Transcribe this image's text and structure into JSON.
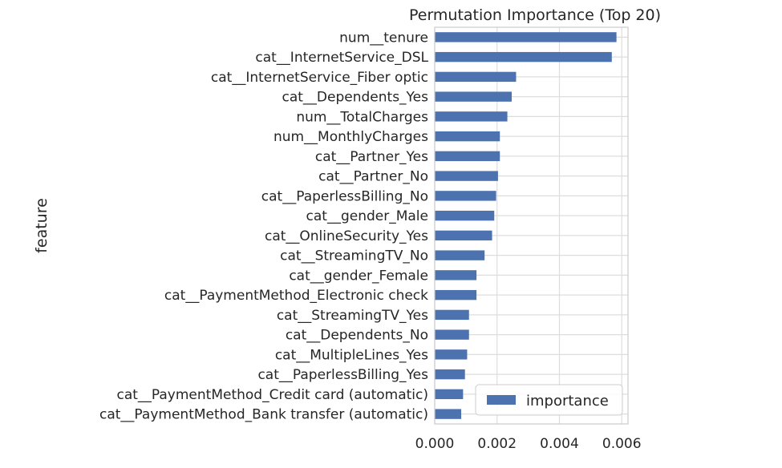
{
  "chart_data": {
    "type": "bar",
    "orientation": "horizontal",
    "title": "Permutation Importance (Top 20)",
    "xlabel": "",
    "ylabel": "feature",
    "xlim": [
      0,
      0.0062
    ],
    "xticks": [
      "0.000",
      "0.002",
      "0.004",
      "0.006"
    ],
    "xtick_values": [
      0,
      0.002,
      0.004,
      0.006
    ],
    "grid": true,
    "legend_position": "lower-right",
    "bar_color": "#4c72b0",
    "categories": [
      "num__tenure",
      "cat__InternetService_DSL",
      "cat__InternetService_Fiber optic",
      "cat__Dependents_Yes",
      "num__TotalCharges",
      "num__MonthlyCharges",
      "cat__Partner_Yes",
      "cat__Partner_No",
      "cat__PaperlessBilling_No",
      "cat__gender_Male",
      "cat__OnlineSecurity_Yes",
      "cat__StreamingTV_No",
      "cat__gender_Female",
      "cat__PaymentMethod_Electronic check",
      "cat__StreamingTV_Yes",
      "cat__Dependents_No",
      "cat__MultipleLines_Yes",
      "cat__PaperlessBilling_Yes",
      "cat__PaymentMethod_Credit card (automatic)",
      "cat__PaymentMethod_Bank transfer (automatic)"
    ],
    "series": [
      {
        "name": "importance",
        "values": [
          0.00583,
          0.00568,
          0.00261,
          0.00247,
          0.00233,
          0.00209,
          0.00209,
          0.00203,
          0.00197,
          0.00191,
          0.00184,
          0.0016,
          0.00134,
          0.00134,
          0.0011,
          0.0011,
          0.00104,
          0.00097,
          0.00091,
          0.00085
        ]
      }
    ]
  }
}
